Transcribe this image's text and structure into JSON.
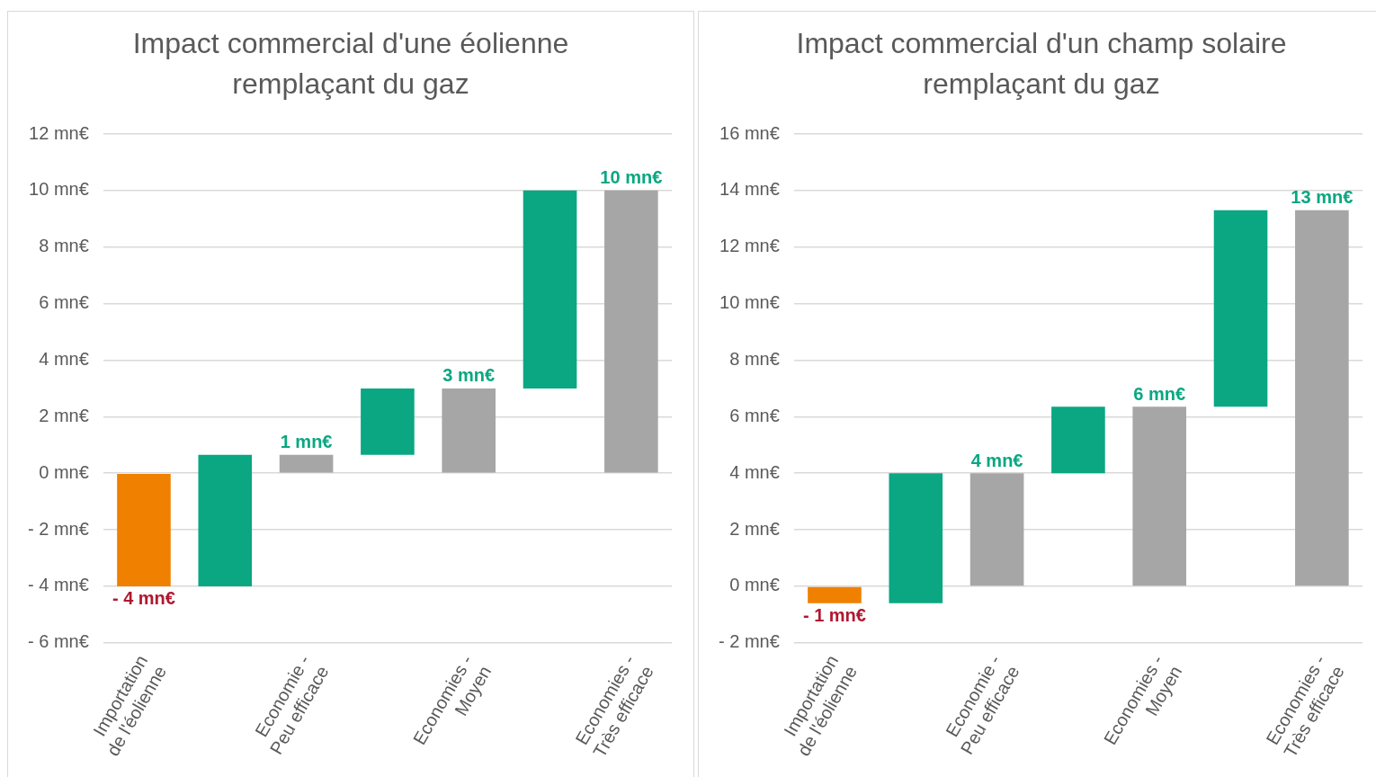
{
  "chart_data": [
    {
      "type": "bar",
      "title": "Impact commercial d'une éolienne remplaçant du gaz",
      "categories": [
        "Importation de l'éolienne",
        null,
        "Economie - Peu efficace",
        null,
        "Economies - Moyen",
        null,
        "Economies - Très efficace"
      ],
      "base": [
        0,
        -4,
        0,
        0.65,
        0,
        3,
        0
      ],
      "values": [
        -4,
        4.65,
        0.65,
        2.35,
        3,
        7,
        10
      ],
      "colors": [
        "#f08000",
        "#0aa782",
        "#a6a6a6",
        "#0aa782",
        "#a6a6a6",
        "#0aa782",
        "#a6a6a6"
      ],
      "value_labels": [
        "- 4 mn€",
        null,
        "1 mn€",
        null,
        "3 mn€",
        null,
        "10 mn€"
      ],
      "ylim": [
        -6,
        12
      ],
      "yticks": [
        {
          "value": -6,
          "label": "- 6 mn€"
        },
        {
          "value": -4,
          "label": "- 4 mn€"
        },
        {
          "value": -2,
          "label": "- 2 mn€"
        },
        {
          "value": 0,
          "label": "0 mn€"
        },
        {
          "value": 2,
          "label": "2 mn€"
        },
        {
          "value": 4,
          "label": "4 mn€"
        },
        {
          "value": 6,
          "label": "6 mn€"
        },
        {
          "value": 8,
          "label": "8 mn€"
        },
        {
          "value": 10,
          "label": "10 mn€"
        },
        {
          "value": 12,
          "label": "12 mn€"
        }
      ],
      "grid": "y",
      "legend": false
    },
    {
      "type": "bar",
      "title": "Impact commercial d'un champ solaire remplaçant du gaz",
      "categories": [
        "Importation de l'éolienne",
        null,
        "Economie - Peu efficace",
        null,
        "Economies - Moyen",
        null,
        "Economies - Très efficace"
      ],
      "base": [
        0,
        -0.6,
        0,
        4,
        0,
        6.35,
        0
      ],
      "values": [
        -0.6,
        4.6,
        4,
        2.35,
        6.35,
        6.95,
        13.3
      ],
      "colors": [
        "#f08000",
        "#0aa782",
        "#a6a6a6",
        "#0aa782",
        "#a6a6a6",
        "#0aa782",
        "#a6a6a6"
      ],
      "value_labels": [
        "- 1 mn€",
        null,
        "4 mn€",
        null,
        "6 mn€",
        null,
        "13 mn€"
      ],
      "ylim": [
        -2,
        16
      ],
      "yticks": [
        {
          "value": -2,
          "label": "- 2 mn€"
        },
        {
          "value": 0,
          "label": "0 mn€"
        },
        {
          "value": 2,
          "label": "2 mn€"
        },
        {
          "value": 4,
          "label": "4 mn€"
        },
        {
          "value": 6,
          "label": "6 mn€"
        },
        {
          "value": 8,
          "label": "8 mn€"
        },
        {
          "value": 10,
          "label": "10 mn€"
        },
        {
          "value": 12,
          "label": "12 mn€"
        },
        {
          "value": 14,
          "label": "14 mn€"
        },
        {
          "value": 16,
          "label": "16 mn€"
        }
      ],
      "grid": "y",
      "legend": false
    }
  ]
}
